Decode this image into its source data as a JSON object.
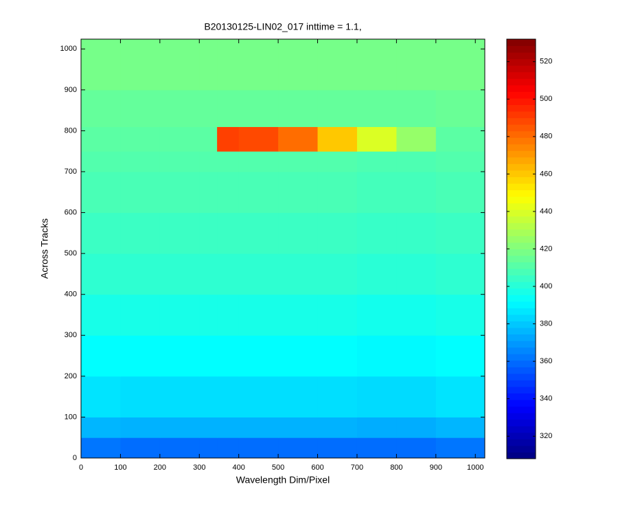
{
  "chart_data": {
    "type": "heatmap",
    "title": "B20130125-LIN02_017 inttime = 1.1,",
    "x_label": "Wavelength Dim/Pixel",
    "y_label": "Across Tracks",
    "x": [
      0,
      100,
      200,
      300,
      345,
      400,
      500,
      600,
      700,
      800,
      900,
      1024
    ],
    "y": [
      0,
      50,
      100,
      200,
      300,
      400,
      500,
      600,
      700,
      750,
      810,
      900,
      1024
    ],
    "values": [
      [
        362,
        360,
        360,
        360,
        360,
        360,
        360,
        360,
        360,
        360,
        362
      ],
      [
        376,
        375,
        375,
        375,
        375,
        375,
        375,
        375,
        374,
        374,
        376
      ],
      [
        386,
        385,
        385,
        385,
        385,
        385,
        385,
        385,
        384,
        384,
        386
      ],
      [
        392,
        392,
        392,
        392,
        392,
        392,
        392,
        392,
        391,
        391,
        392
      ],
      [
        397,
        397,
        397,
        397,
        397,
        397,
        397,
        397,
        396,
        396,
        397
      ],
      [
        402,
        402,
        402,
        402,
        402,
        402,
        402,
        402,
        401,
        401,
        402
      ],
      [
        405,
        405,
        405,
        405,
        405,
        405,
        405,
        405,
        404,
        404,
        405
      ],
      [
        408,
        408,
        408,
        408,
        408,
        408,
        408,
        408,
        407,
        407,
        408
      ],
      [
        410,
        410,
        410,
        410,
        410,
        410,
        410,
        410,
        409,
        409,
        410
      ],
      [
        412,
        412,
        412,
        412,
        490,
        488,
        480,
        460,
        440,
        425,
        412
      ],
      [
        414,
        414,
        414,
        414,
        414,
        414,
        414,
        414,
        414,
        414,
        415
      ],
      [
        418,
        418,
        418,
        418,
        418,
        418,
        418,
        418,
        418,
        418,
        418
      ]
    ],
    "xlim": [
      0,
      1024
    ],
    "ylim": [
      0,
      1024
    ],
    "xticks": [
      0,
      100,
      200,
      300,
      400,
      500,
      600,
      700,
      800,
      900,
      1000
    ],
    "yticks": [
      0,
      100,
      200,
      300,
      400,
      500,
      600,
      700,
      800,
      900,
      1000
    ],
    "colormap": "jet",
    "clim": [
      308,
      532
    ],
    "cticks": [
      320,
      340,
      360,
      380,
      400,
      420,
      440,
      460,
      480,
      500,
      520
    ]
  }
}
